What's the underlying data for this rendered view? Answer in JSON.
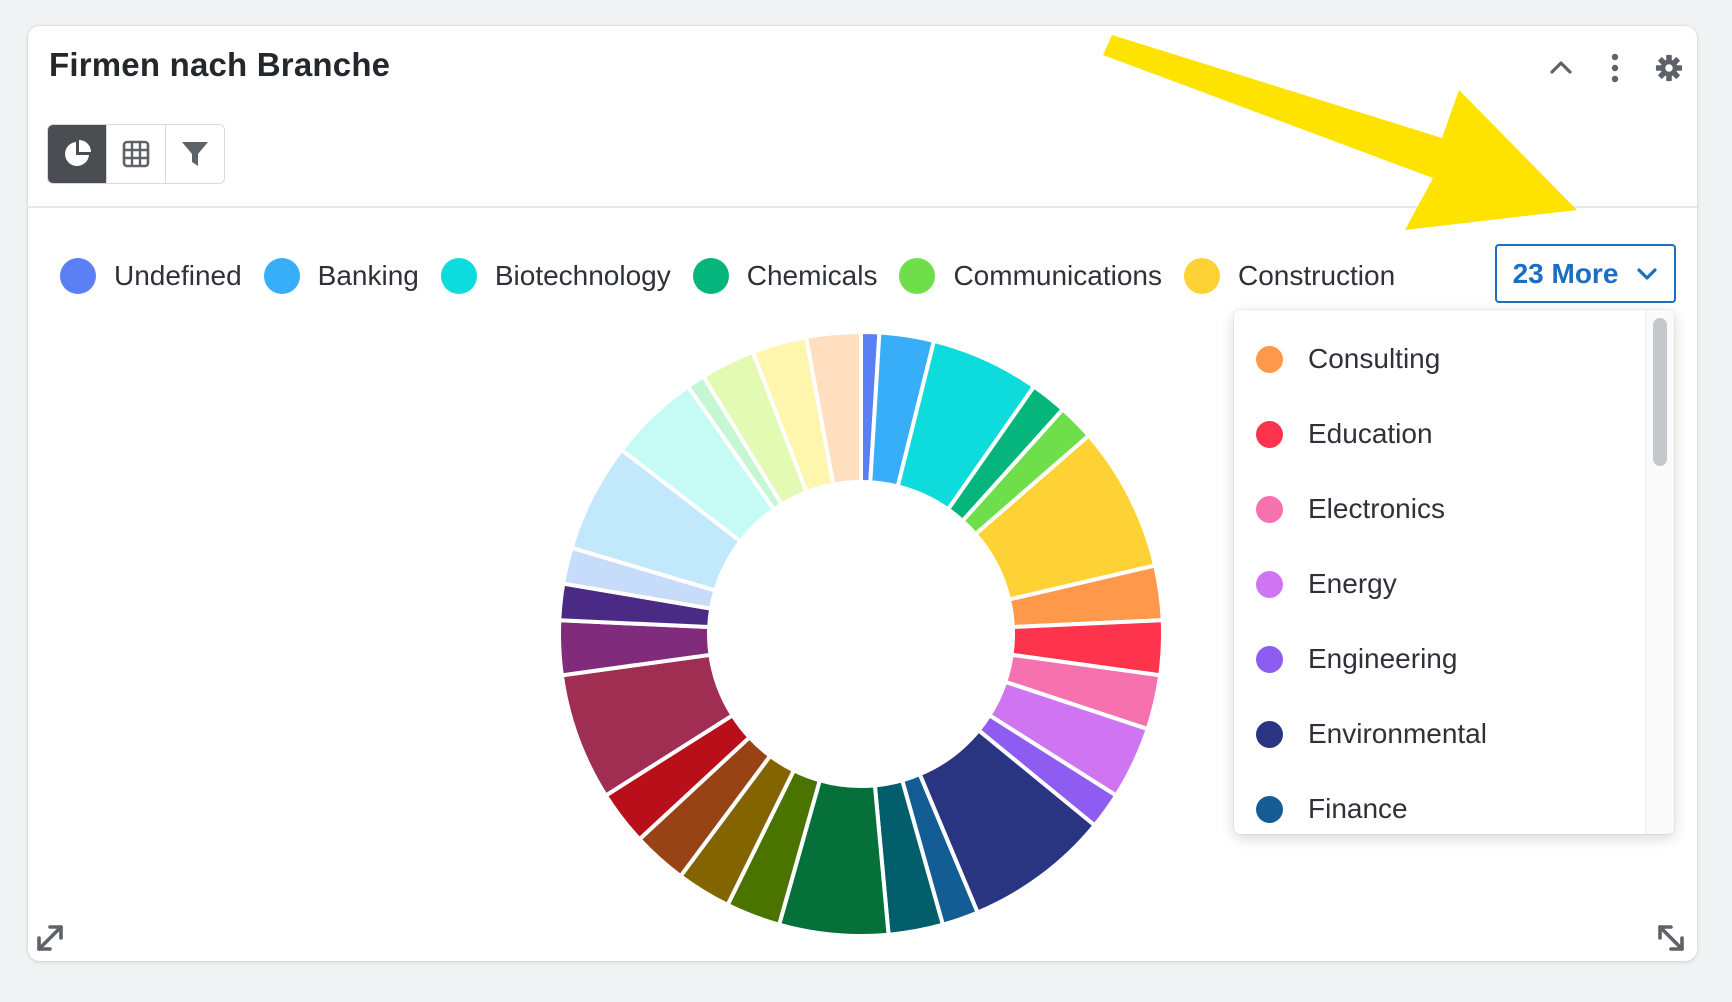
{
  "widget": {
    "title": "Firmen nach Branche",
    "header_icons": [
      "chevron-up-icon",
      "kebab-menu-icon",
      "gear-icon"
    ],
    "view_modes": [
      {
        "icon": "pie-chart-icon",
        "active": true
      },
      {
        "icon": "table-grid-icon",
        "active": false
      },
      {
        "icon": "filter-icon",
        "active": false
      }
    ]
  },
  "legend": {
    "items": [
      {
        "label": "Undefined",
        "color": "#5b7ff5"
      },
      {
        "label": "Banking",
        "color": "#37aef7"
      },
      {
        "label": "Biotechnology",
        "color": "#0ddbdc"
      },
      {
        "label": "Chemicals",
        "color": "#05b57c"
      },
      {
        "label": "Communications",
        "color": "#6edf4a"
      },
      {
        "label": "Construction",
        "color": "#fed234"
      }
    ],
    "more_label": "23 More"
  },
  "dropdown": {
    "items": [
      {
        "label": "Consulting",
        "color": "#fe984a"
      },
      {
        "label": "Education",
        "color": "#fd344c"
      },
      {
        "label": "Electronics",
        "color": "#f572ae"
      },
      {
        "label": "Energy",
        "color": "#cf75f2"
      },
      {
        "label": "Engineering",
        "color": "#8e5cf0"
      },
      {
        "label": "Environmental",
        "color": "#2a3582"
      },
      {
        "label": "Finance",
        "color": "#145d94"
      }
    ]
  },
  "chart_data": {
    "type": "pie",
    "donut": true,
    "series": [
      {
        "name": "Undefined",
        "value": 1,
        "color": "#5b7ff5"
      },
      {
        "name": "Banking",
        "value": 3,
        "color": "#37aef7"
      },
      {
        "name": "Biotechnology",
        "value": 6,
        "color": "#0ddbdc"
      },
      {
        "name": "Chemicals",
        "value": 2,
        "color": "#05b57c"
      },
      {
        "name": "Communications",
        "value": 2,
        "color": "#6edf4a"
      },
      {
        "name": "Construction",
        "value": 8,
        "color": "#fed234"
      },
      {
        "name": "Consulting",
        "value": 3,
        "color": "#fe984a"
      },
      {
        "name": "Education",
        "value": 3,
        "color": "#fd344c"
      },
      {
        "name": "Electronics",
        "value": 3,
        "color": "#f572ae"
      },
      {
        "name": "Energy",
        "value": 4,
        "color": "#cf75f2"
      },
      {
        "name": "Engineering",
        "value": 2,
        "color": "#8e5cf0"
      },
      {
        "name": "Environmental",
        "value": 8,
        "color": "#2a3582"
      },
      {
        "name": "Finance",
        "value": 2,
        "color": "#145d94"
      },
      {
        "name": "",
        "value": 3,
        "color": "#035e6c"
      },
      {
        "name": "",
        "value": 6,
        "color": "#057039"
      },
      {
        "name": "",
        "value": 3,
        "color": "#4b7300"
      },
      {
        "name": "",
        "value": 3,
        "color": "#846400"
      },
      {
        "name": "",
        "value": 3,
        "color": "#974316"
      },
      {
        "name": "",
        "value": 3,
        "color": "#b90f1b"
      },
      {
        "name": "",
        "value": 7,
        "color": "#a02d52"
      },
      {
        "name": "",
        "value": 3,
        "color": "#812b7d"
      },
      {
        "name": "",
        "value": 2,
        "color": "#4a2a84"
      },
      {
        "name": "",
        "value": 2,
        "color": "#c7dcfb"
      },
      {
        "name": "",
        "value": 6,
        "color": "#c2e8fb"
      },
      {
        "name": "",
        "value": 5,
        "color": "#c6fbf5"
      },
      {
        "name": "",
        "value": 1,
        "color": "#c4f7d2"
      },
      {
        "name": "",
        "value": 3,
        "color": "#e3fab2"
      },
      {
        "name": "",
        "value": 3,
        "color": "#fff6ad"
      },
      {
        "name": "",
        "value": 3,
        "color": "#ffdfbf"
      }
    ]
  }
}
